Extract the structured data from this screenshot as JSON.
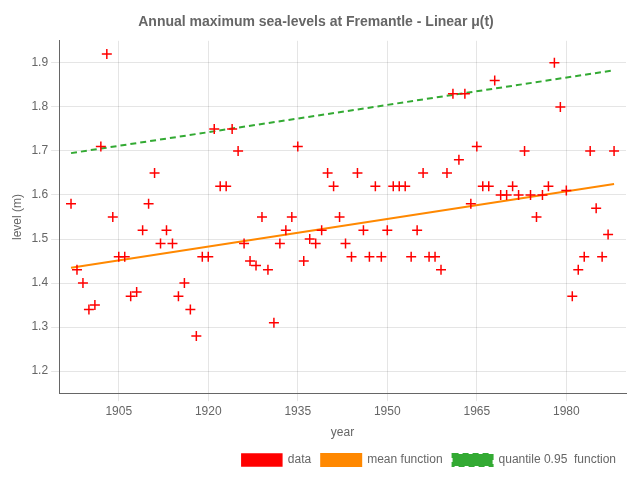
{
  "chart_data": {
    "type": "scatter",
    "title": "Annual maximum sea-levels at Fremantle - Linear μ(t)",
    "xlabel": "year",
    "ylabel": "level (m)",
    "series": [
      {
        "name": "data",
        "type": "scatter",
        "marker": "+",
        "color": "#ff0000",
        "x": [
          1897,
          1898,
          1899,
          1900,
          1901,
          1902,
          1903,
          1904,
          1905,
          1906,
          1907,
          1908,
          1909,
          1910,
          1911,
          1912,
          1913,
          1914,
          1915,
          1916,
          1917,
          1918,
          1919,
          1920,
          1921,
          1922,
          1923,
          1924,
          1925,
          1926,
          1927,
          1928,
          1929,
          1930,
          1931,
          1932,
          1933,
          1934,
          1935,
          1936,
          1937,
          1938,
          1939,
          1940,
          1941,
          1942,
          1943,
          1944,
          1945,
          1946,
          1947,
          1948,
          1949,
          1950,
          1951,
          1952,
          1953,
          1954,
          1955,
          1956,
          1957,
          1958,
          1959,
          1960,
          1961,
          1962,
          1963,
          1964,
          1965,
          1966,
          1967,
          1968,
          1969,
          1970,
          1971,
          1972,
          1973,
          1974,
          1975,
          1976,
          1977,
          1978,
          1979,
          1980,
          1981,
          1982,
          1983,
          1984,
          1985,
          1986,
          1987,
          1988
        ],
        "values": [
          1.58,
          1.43,
          1.4,
          1.34,
          1.35,
          1.71,
          1.92,
          1.55,
          1.46,
          1.46,
          1.37,
          1.38,
          1.52,
          1.58,
          1.65,
          1.49,
          1.52,
          1.49,
          1.37,
          1.4,
          1.34,
          1.28,
          1.46,
          1.46,
          1.75,
          1.62,
          1.62,
          1.75,
          1.7,
          1.49,
          1.45,
          1.44,
          1.55,
          1.43,
          1.31,
          1.49,
          1.52,
          1.55,
          1.71,
          1.45,
          1.5,
          1.49,
          1.52,
          1.65,
          1.62,
          1.55,
          1.49,
          1.46,
          1.65,
          1.52,
          1.46,
          1.62,
          1.46,
          1.52,
          1.62,
          1.62,
          1.62,
          1.46,
          1.52,
          1.65,
          1.46,
          1.46,
          1.43,
          1.65,
          1.83,
          1.68,
          1.83,
          1.58,
          1.71,
          1.62,
          1.62,
          1.86,
          1.6,
          1.6,
          1.62,
          1.6,
          1.7,
          1.6,
          1.55,
          1.6,
          1.62,
          1.9,
          1.8,
          1.61,
          1.37,
          1.43,
          1.46,
          1.7,
          1.57,
          1.46,
          1.51,
          1.7
        ]
      },
      {
        "name": "mean function",
        "type": "line",
        "line_style": "solid",
        "color": "#ff8800",
        "x": [
          1897,
          1988
        ],
        "values": [
          1.435,
          1.625
        ]
      },
      {
        "name": "quantile 0.95  function",
        "type": "line",
        "line_style": "dashed",
        "color": "#33aa33",
        "x": [
          1897,
          1988
        ],
        "values": [
          1.695,
          1.883
        ]
      }
    ],
    "xlim": [
      1895,
      1990
    ],
    "xticks": [
      1905,
      1920,
      1935,
      1950,
      1965,
      1980
    ],
    "ylim": [
      1.15,
      1.95
    ],
    "yticks": [
      1.2,
      1.3,
      1.4,
      1.5,
      1.6,
      1.7,
      1.8,
      1.9
    ],
    "grid": true,
    "legend": "lower right"
  }
}
